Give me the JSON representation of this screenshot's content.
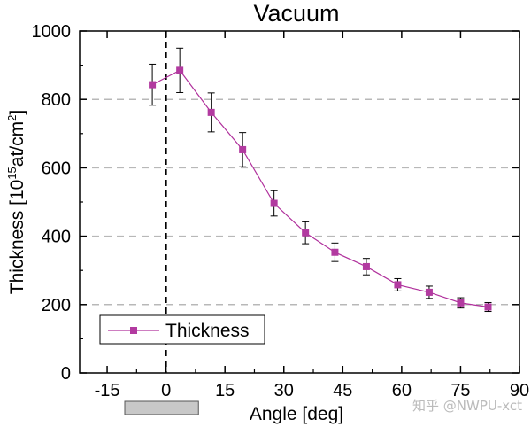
{
  "chart_data": {
    "type": "line",
    "title": "Vacuum",
    "xlabel": "Angle [deg]",
    "ylabel": {
      "prefix": "Thickness [10",
      "sup1": "15",
      "mid": "at/cm",
      "sup2": "2",
      "suffix": "]"
    },
    "xlim": [
      -22,
      90
    ],
    "ylim": [
      0,
      1000
    ],
    "xticks": [
      -15,
      0,
      15,
      30,
      45,
      60,
      75,
      90
    ],
    "xtick_labels": [
      "-15",
      "0",
      "15",
      "30",
      "45",
      "60",
      "75",
      "90"
    ],
    "yticks": [
      0,
      200,
      400,
      600,
      800,
      1000
    ],
    "ytick_labels": [
      "0",
      "200",
      "400",
      "600",
      "800",
      "1000"
    ],
    "gridlines_y": [
      200,
      400,
      600,
      800
    ],
    "vertical_reference_x": 0,
    "shaded_bar_x_range": [
      -6,
      6
    ],
    "series": [
      {
        "name": "Thickness",
        "color": "#b0309c",
        "marker_color": "#b23aa0",
        "x": [
          -3.5,
          3.5,
          11.5,
          19.5,
          27.5,
          35.5,
          43,
          51,
          59,
          67,
          75,
          82
        ],
        "y": [
          843,
          885,
          762,
          653,
          496,
          410,
          353,
          311,
          258,
          236,
          205,
          193
        ],
        "err": [
          60,
          65,
          57,
          50,
          37,
          32,
          27,
          24,
          18,
          18,
          15,
          13
        ]
      }
    ],
    "legend": {
      "position": "bottom-left",
      "entries": [
        "Thickness"
      ]
    }
  },
  "watermark": "知乎 @NWPU-xct"
}
